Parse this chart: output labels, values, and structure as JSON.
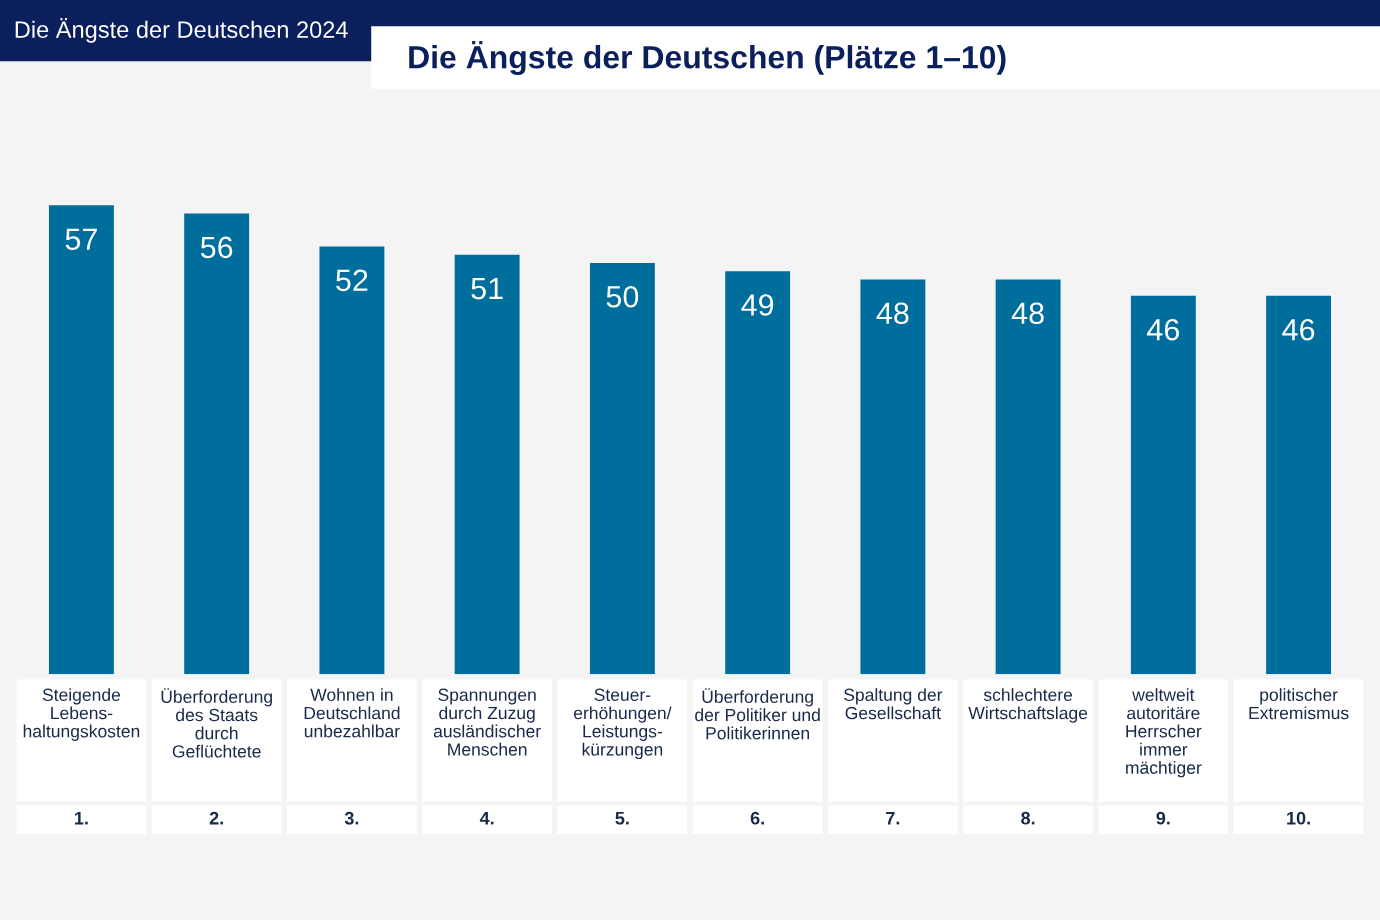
{
  "chart_data": {
    "type": "bar",
    "title": "Die Ängste der Deutschen (Plätze 1–10)",
    "subtitle": "Die Ängste der Deutschen 2024",
    "categories": [
      "Steigende\nLebens-\nhaltungskosten",
      "Überforderung\ndes Staats\ndurch\nGeflüchtete",
      "Wohnen in\nDeutschland\nunbezahlbar",
      "Spannungen\ndurch Zuzug\nausländischer\nMenschen",
      "Steuer-\nerhöhungen/\nLeistungs-\nkürzungen",
      "Überforderung\nder Politiker und\nPolitikerinnen",
      "Spaltung der\nGesellschaft",
      "schlechtere\nWirtschaftslage",
      "weltweit\nautoritäre\nHerrscher\nimmer\nmächtiger",
      "politischer\nExtremismus"
    ],
    "values": [
      57,
      56,
      52,
      51,
      50,
      49,
      48,
      48,
      46,
      46
    ],
    "color": "#006e9c",
    "data_labels": true,
    "annotations": [
      "1.",
      "2.",
      "3.",
      "4.",
      "5.",
      "6.",
      "7.",
      "8.",
      "9.",
      "10."
    ]
  }
}
